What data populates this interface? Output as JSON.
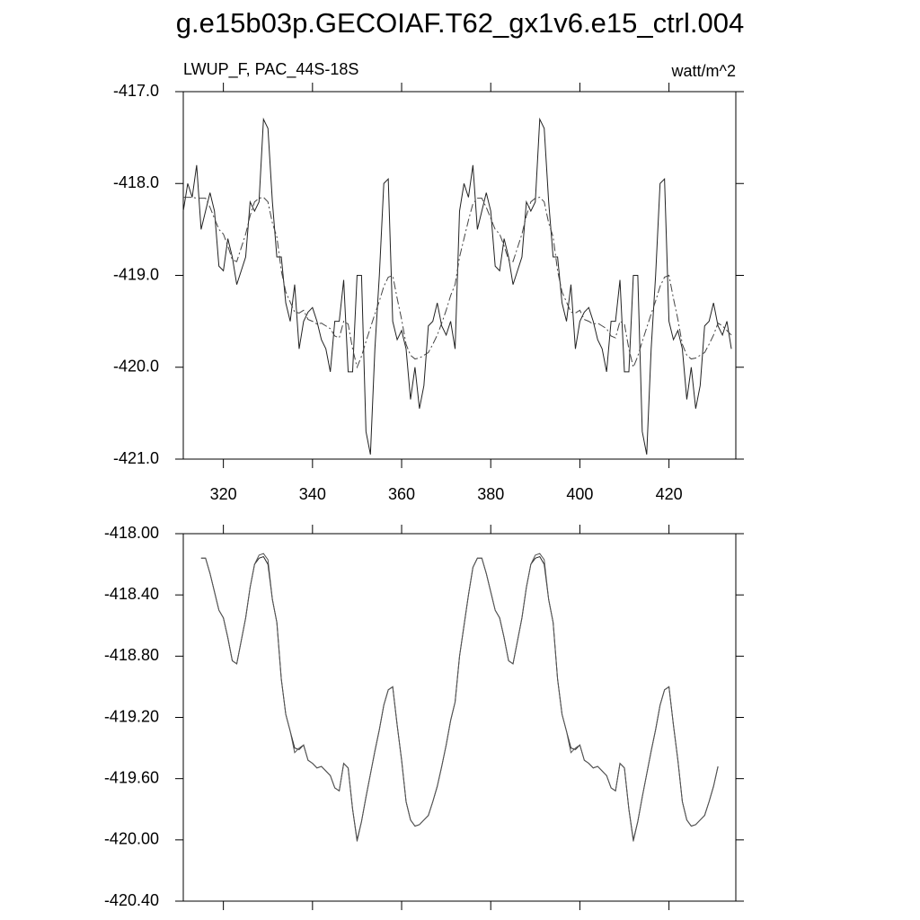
{
  "chart_data": [
    {
      "type": "line",
      "title": "g.e15b03p.GECOIAF.T62_gx1v6.e15_ctrl.004",
      "subtitle": "LWUP_F, PAC_44S-18S",
      "units": "watt/m^2",
      "x": [
        311,
        312,
        313,
        314,
        315,
        316,
        317,
        318,
        319,
        320,
        321,
        322,
        323,
        324,
        325,
        326,
        327,
        328,
        329,
        330,
        331,
        332,
        333,
        334,
        335,
        336,
        337,
        338,
        339,
        340,
        341,
        342,
        343,
        344,
        345,
        346,
        347,
        348,
        349,
        350,
        351,
        352,
        353,
        354,
        355,
        356,
        357,
        358,
        359,
        360,
        361,
        362,
        363,
        364,
        365,
        366,
        367,
        368,
        369,
        370,
        371,
        372,
        373,
        374,
        375,
        376,
        377,
        378,
        379,
        380,
        381,
        382,
        383,
        384,
        385,
        386,
        387,
        388,
        389,
        390,
        391,
        392,
        393,
        394,
        395,
        396,
        397,
        398,
        399,
        400,
        401,
        402,
        403,
        404,
        405,
        406,
        407,
        408,
        409,
        410,
        411,
        412,
        413,
        414,
        415,
        416,
        417,
        418,
        419,
        420,
        421,
        422,
        423,
        424,
        425,
        426,
        427,
        428,
        429,
        430,
        431,
        432,
        433,
        434
      ],
      "series": [
        {
          "color": "#222222",
          "line_style": "solid",
          "values": [
            -418.3,
            -418.0,
            -418.15,
            -417.8,
            -418.5,
            -418.3,
            -418.1,
            -418.3,
            -418.9,
            -418.95,
            -418.6,
            -418.8,
            -419.1,
            -418.95,
            -418.8,
            -418.2,
            -418.3,
            -418.2,
            -417.3,
            -417.4,
            -418.2,
            -418.8,
            -418.8,
            -419.3,
            -419.5,
            -419.1,
            -419.8,
            -419.5,
            -419.4,
            -419.35,
            -419.5,
            -419.7,
            -419.8,
            -420.05,
            -419.5,
            -419.5,
            -419.05,
            -420.05,
            -420.05,
            -419.0,
            -419.0,
            -420.7,
            -420.95,
            -419.8,
            -419.0,
            -418.0,
            -417.95,
            -419.5,
            -419.7,
            -419.6,
            -419.8,
            -420.35,
            -420.0,
            -420.45,
            -420.2,
            -419.55,
            -419.5,
            -419.3,
            -419.55,
            -419.65,
            -419.5,
            -419.8,
            -418.3,
            -418.0,
            -418.15,
            -417.8,
            -418.5,
            -418.3,
            -418.1,
            -418.3,
            -418.9,
            -418.95,
            -418.6,
            -418.8,
            -419.1,
            -418.95,
            -418.8,
            -418.2,
            -418.3,
            -418.2,
            -417.3,
            -417.4,
            -418.2,
            -418.8,
            -418.8,
            -419.3,
            -419.5,
            -419.1,
            -419.8,
            -419.5,
            -419.4,
            -419.35,
            -419.5,
            -419.7,
            -419.8,
            -420.05,
            -419.5,
            -419.5,
            -419.05,
            -420.05,
            -420.05,
            -419.0,
            -419.0,
            -420.7,
            -420.95,
            -419.8,
            -419.0,
            -418.0,
            -417.95,
            -419.5,
            -419.7,
            -419.6,
            -419.8,
            -420.35,
            -420.0,
            -420.45,
            -420.2,
            -419.55,
            -419.5,
            -419.3,
            -419.55,
            -419.65,
            -419.5,
            -419.8
          ]
        },
        {
          "color": "#444444",
          "line_style": "dashdot",
          "values": [
            -418.15,
            -418.15,
            -418.15,
            -418.16,
            -418.16,
            -418.16,
            -418.26,
            -418.38,
            -418.5,
            -418.55,
            -418.68,
            -418.83,
            -418.85,
            -418.7,
            -418.55,
            -418.35,
            -418.2,
            -418.16,
            -418.15,
            -418.2,
            -418.43,
            -418.58,
            -418.95,
            -419.18,
            -419.29,
            -419.4,
            -419.41,
            -419.38,
            -419.48,
            -419.5,
            -419.53,
            -419.52,
            -419.55,
            -419.58,
            -419.66,
            -419.68,
            -419.5,
            -419.53,
            -419.8,
            -420.0,
            -419.88,
            -419.72,
            -419.57,
            -419.42,
            -419.28,
            -419.12,
            -419.02,
            -419.0,
            -419.25,
            -419.48,
            -419.75,
            -419.87,
            -419.91,
            -419.9,
            -419.87,
            -419.84,
            -419.75,
            -419.65,
            -419.52,
            -419.38,
            -419.22,
            -419.1,
            -418.8,
            -418.6,
            -418.4,
            -418.22,
            -418.16,
            -418.16,
            -418.26,
            -418.38,
            -418.5,
            -418.55,
            -418.68,
            -418.83,
            -418.85,
            -418.7,
            -418.55,
            -418.35,
            -418.2,
            -418.16,
            -418.15,
            -418.2,
            -418.43,
            -418.58,
            -418.95,
            -419.18,
            -419.29,
            -419.4,
            -419.41,
            -419.38,
            -419.48,
            -419.5,
            -419.53,
            -419.52,
            -419.55,
            -419.58,
            -419.66,
            -419.68,
            -419.5,
            -419.53,
            -419.8,
            -420.0,
            -419.88,
            -419.72,
            -419.57,
            -419.42,
            -419.28,
            -419.12,
            -419.02,
            -419.0,
            -419.25,
            -419.48,
            -419.75,
            -419.87,
            -419.91,
            -419.9,
            -419.87,
            -419.84,
            -419.75,
            -419.65,
            -419.52,
            -419.55,
            -419.6,
            -419.65
          ]
        }
      ],
      "xlim": [
        311,
        435
      ],
      "xticks": [
        320,
        340,
        360,
        380,
        400,
        420
      ],
      "ylim": [
        -421,
        -417
      ],
      "yticks": [
        {
          "value": -421,
          "label": "-421.0"
        },
        {
          "value": -420,
          "label": "-420.0"
        },
        {
          "value": -419,
          "label": "-419.0"
        },
        {
          "value": -418,
          "label": "-418.0"
        },
        {
          "value": -417,
          "label": "-417.0"
        }
      ]
    },
    {
      "type": "line",
      "xtick_labels": false,
      "x": [
        315,
        316,
        317,
        318,
        319,
        320,
        321,
        322,
        323,
        324,
        325,
        326,
        327,
        328,
        329,
        330,
        331,
        332,
        333,
        334,
        335,
        336,
        337,
        338,
        339,
        340,
        341,
        342,
        343,
        344,
        345,
        346,
        347,
        348,
        349,
        350,
        351,
        352,
        353,
        354,
        355,
        356,
        357,
        358,
        359,
        360,
        361,
        362,
        363,
        364,
        365,
        366,
        367,
        368,
        369,
        370,
        371,
        372,
        373,
        374,
        375,
        376,
        377,
        378,
        379,
        380,
        381,
        382,
        383,
        384,
        385,
        386,
        387,
        388,
        389,
        390,
        391,
        392,
        393,
        394,
        395,
        396,
        397,
        398,
        399,
        400,
        401,
        402,
        403,
        404,
        405,
        406,
        407,
        408,
        409,
        410,
        411,
        412,
        413,
        414,
        415,
        416,
        417,
        418,
        419,
        420,
        421,
        422,
        423,
        424,
        425,
        426,
        427,
        428,
        429,
        430,
        431
      ],
      "series": [
        {
          "color": "#222222",
          "line_style": "solid",
          "values": [
            -418.16,
            -418.16,
            -418.26,
            -418.38,
            -418.5,
            -418.55,
            -418.68,
            -418.83,
            -418.85,
            -418.7,
            -418.55,
            -418.35,
            -418.2,
            -418.16,
            -418.15,
            -418.2,
            -418.43,
            -418.58,
            -418.95,
            -419.18,
            -419.29,
            -419.4,
            -419.41,
            -419.38,
            -419.48,
            -419.5,
            -419.53,
            -419.52,
            -419.55,
            -419.58,
            -419.66,
            -419.68,
            -419.5,
            -419.53,
            -419.8,
            -420.0,
            -419.88,
            -419.72,
            -419.57,
            -419.42,
            -419.28,
            -419.12,
            -419.02,
            -419.0,
            -419.25,
            -419.48,
            -419.75,
            -419.87,
            -419.91,
            -419.9,
            -419.87,
            -419.84,
            -419.75,
            -419.65,
            -419.52,
            -419.38,
            -419.22,
            -419.1,
            -418.8,
            -418.6,
            -418.4,
            -418.22,
            -418.16,
            -418.16,
            -418.26,
            -418.38,
            -418.5,
            -418.55,
            -418.68,
            -418.83,
            -418.85,
            -418.7,
            -418.55,
            -418.35,
            -418.2,
            -418.16,
            -418.15,
            -418.2,
            -418.43,
            -418.58,
            -418.95,
            -419.18,
            -419.29,
            -419.4,
            -419.41,
            -419.38,
            -419.48,
            -419.5,
            -419.53,
            -419.52,
            -419.55,
            -419.58,
            -419.66,
            -419.68,
            -419.5,
            -419.53,
            -419.8,
            -420.0,
            -419.88,
            -419.72,
            -419.57,
            -419.42,
            -419.28,
            -419.12,
            -419.02,
            -419.0,
            -419.25,
            -419.48,
            -419.75,
            -419.87,
            -419.91,
            -419.9,
            -419.87,
            -419.84,
            -419.75,
            -419.65,
            -419.52
          ]
        },
        {
          "color": "#555555",
          "line_style": "solid",
          "values": [
            -418.16,
            -418.16,
            -418.26,
            -418.38,
            -418.5,
            -418.55,
            -418.68,
            -418.83,
            -418.85,
            -418.7,
            -418.55,
            -418.35,
            -418.2,
            -418.14,
            -418.13,
            -418.17,
            -418.43,
            -418.58,
            -418.95,
            -419.18,
            -419.29,
            -419.43,
            -419.4,
            -419.38,
            -419.48,
            -419.5,
            -419.53,
            -419.52,
            -419.55,
            -419.58,
            -419.66,
            -419.68,
            -419.5,
            -419.53,
            -419.8,
            -420.01,
            -419.88,
            -419.72,
            -419.57,
            -419.42,
            -419.28,
            -419.12,
            -419.02,
            -419.0,
            -419.25,
            -419.48,
            -419.75,
            -419.87,
            -419.91,
            -419.9,
            -419.87,
            -419.84,
            -419.75,
            -419.65,
            -419.52,
            -419.38,
            -419.22,
            -419.1,
            -418.8,
            -418.6,
            -418.4,
            -418.22,
            -418.16,
            -418.16,
            -418.26,
            -418.38,
            -418.5,
            -418.55,
            -418.68,
            -418.83,
            -418.85,
            -418.7,
            -418.55,
            -418.35,
            -418.2,
            -418.14,
            -418.13,
            -418.17,
            -418.43,
            -418.58,
            -418.95,
            -419.18,
            -419.29,
            -419.43,
            -419.4,
            -419.38,
            -419.48,
            -419.5,
            -419.53,
            -419.52,
            -419.55,
            -419.58,
            -419.66,
            -419.68,
            -419.5,
            -419.53,
            -419.8,
            -420.01,
            -419.88,
            -419.72,
            -419.57,
            -419.42,
            -419.28,
            -419.12,
            -419.02,
            -419.0,
            -419.25,
            -419.48,
            -419.75,
            -419.87,
            -419.91,
            -419.9,
            -419.87,
            -419.84,
            -419.75,
            -419.65,
            -419.52
          ]
        }
      ],
      "xlim": [
        311,
        435
      ],
      "xticks": [
        320,
        340,
        360,
        380,
        400,
        420
      ],
      "ylim": [
        -420.4,
        -418
      ],
      "yticks": [
        {
          "value": -420.4,
          "label": "-420.40"
        },
        {
          "value": -420,
          "label": "-420.00"
        },
        {
          "value": -419.6,
          "label": "-419.60"
        },
        {
          "value": -419.2,
          "label": "-419.20"
        },
        {
          "value": -418.8,
          "label": "-418.80"
        },
        {
          "value": -418.4,
          "label": "-418.40"
        },
        {
          "value": -418,
          "label": "-418.00"
        }
      ]
    }
  ]
}
